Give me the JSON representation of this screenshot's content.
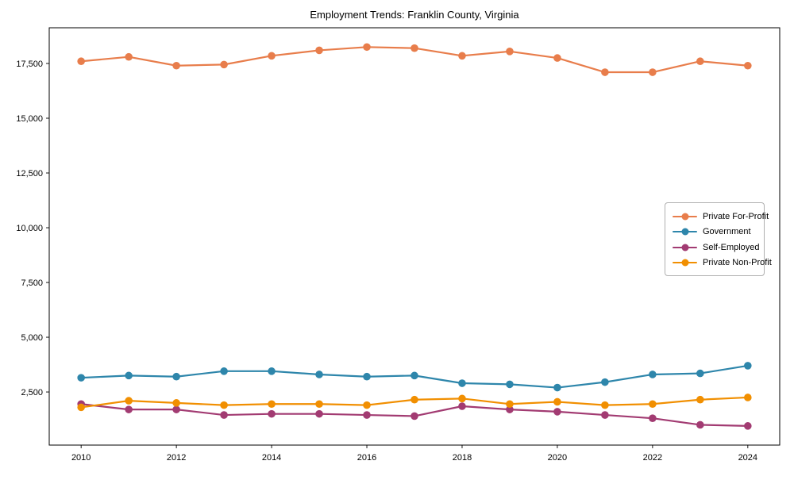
{
  "title": "Employment Trends: Franklin County, Virginia",
  "chart_data": {
    "type": "line",
    "title": "Employment Trends: Franklin County, Virginia",
    "x": [
      2010,
      2011,
      2012,
      2013,
      2014,
      2015,
      2016,
      2017,
      2018,
      2019,
      2020,
      2021,
      2022,
      2023,
      2024
    ],
    "series": [
      {
        "name": "Private For-Profit",
        "color": "#E87D4B",
        "values": [
          17600,
          17800,
          17400,
          17450,
          17850,
          18100,
          18250,
          18200,
          17850,
          18050,
          17750,
          17100,
          17100,
          17600,
          17400
        ]
      },
      {
        "name": "Government",
        "color": "#2E86AB",
        "values": [
          3150,
          3250,
          3200,
          3450,
          3450,
          3300,
          3200,
          3250,
          2900,
          2850,
          2700,
          2950,
          3300,
          3350,
          3700
        ]
      },
      {
        "name": "Self-Employed",
        "color": "#A23B72",
        "values": [
          1950,
          1700,
          1700,
          1450,
          1500,
          1500,
          1450,
          1400,
          1850,
          1700,
          1600,
          1450,
          1300,
          1000,
          950
        ]
      },
      {
        "name": "Private Non-Profit",
        "color": "#F18F01",
        "values": [
          1800,
          2100,
          2000,
          1900,
          1950,
          1950,
          1900,
          2150,
          2200,
          1950,
          2050,
          1900,
          1950,
          2150,
          2250
        ]
      }
    ],
    "axes": {
      "xlim": [
        2009.33,
        2024.67
      ],
      "ylim": [
        75,
        19130
      ],
      "x_tick_values": [
        2010,
        2012,
        2014,
        2016,
        2018,
        2020,
        2022,
        2024
      ],
      "x_tick_labels": [
        "2010",
        "2012",
        "2014",
        "2016",
        "2018",
        "2020",
        "2022",
        "2024"
      ],
      "y_tick_values": [
        2500,
        5000,
        7500,
        10000,
        12500,
        15000,
        17500
      ],
      "y_tick_labels": [
        "2,500",
        "5,000",
        "7,500",
        "10,000",
        "12,500",
        "15,000",
        "17,500"
      ]
    },
    "grid": false,
    "legend_position": "center-right",
    "xlabel": "",
    "ylabel": ""
  }
}
